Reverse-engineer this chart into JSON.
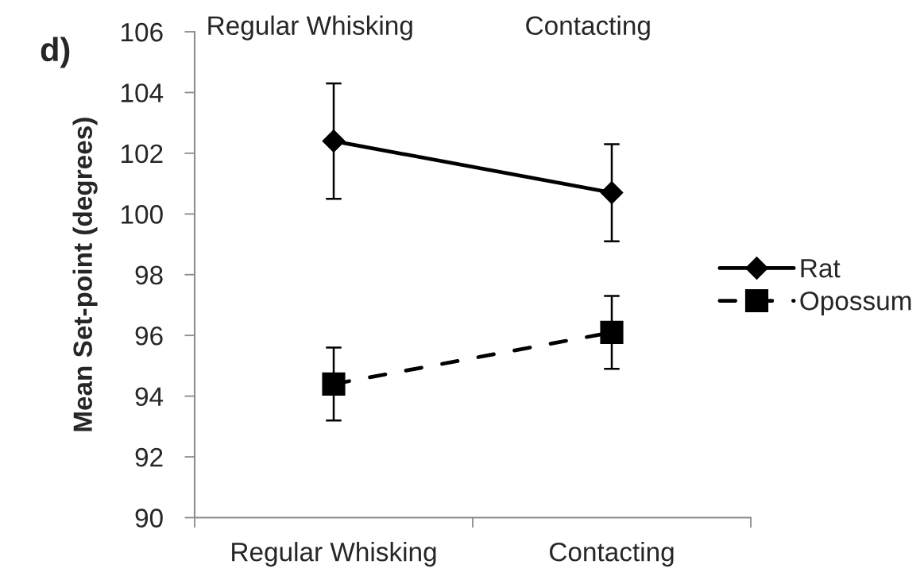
{
  "chart_data": {
    "type": "line",
    "title": "d)",
    "ylabel": "Mean Set-point (degrees)",
    "categories": [
      "Regular Whisking",
      "Contacting"
    ],
    "series": [
      {
        "name": "Rat",
        "color": "#000000",
        "values": [
          102.4,
          100.7
        ],
        "errors": [
          1.9,
          1.6
        ],
        "marker": "diamond",
        "line_style": "solid"
      },
      {
        "name": "Opossum",
        "color": "#000000",
        "values": [
          94.4,
          96.1
        ],
        "errors": [
          1.2,
          1.2
        ],
        "marker": "square",
        "line_style": "dashed"
      }
    ],
    "ylim": [
      90,
      106
    ],
    "yticks": [
      90,
      92,
      94,
      96,
      98,
      100,
      102,
      104,
      106
    ],
    "legend": "right",
    "annotations": [
      "Regular Whisking",
      "Contacting"
    ]
  }
}
